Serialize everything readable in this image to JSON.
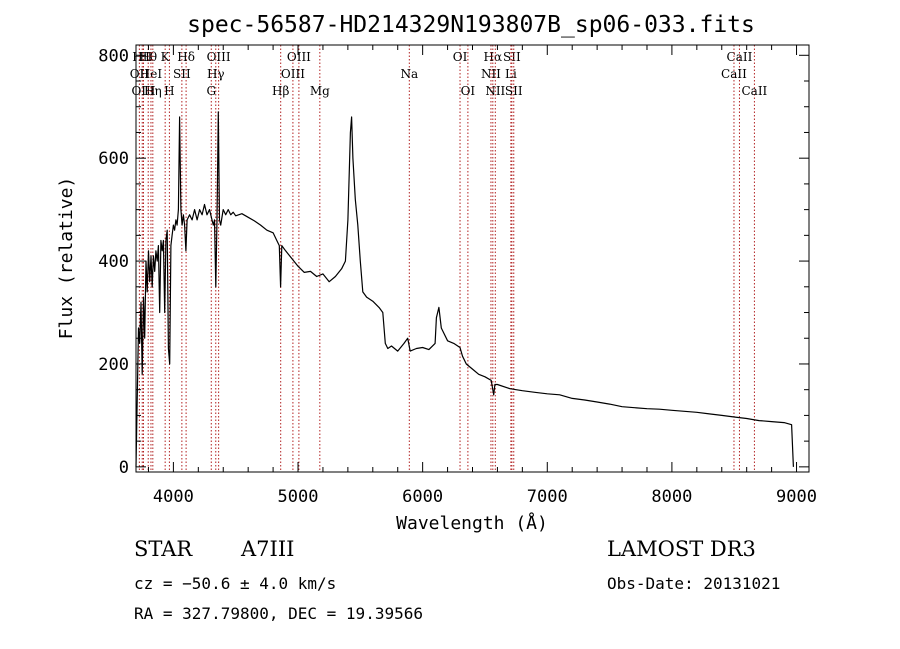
{
  "chart_data": {
    "type": "line",
    "title": "spec-56587-HD214329N193807B_sp06-033.fits",
    "xlabel": "Wavelength (Å)",
    "ylabel": "Flux (relative)",
    "xlim": [
      3700,
      9100
    ],
    "ylim": [
      -10,
      820
    ],
    "xticks": [
      4000,
      5000,
      6000,
      7000,
      8000,
      9000
    ],
    "yticks": [
      0,
      200,
      400,
      600,
      800
    ],
    "line_color": "#000000",
    "marker_color": "#b22222",
    "spectrum": [
      [
        3700,
        0
      ],
      [
        3710,
        130
      ],
      [
        3720,
        270
      ],
      [
        3730,
        240
      ],
      [
        3740,
        320
      ],
      [
        3750,
        180
      ],
      [
        3760,
        330
      ],
      [
        3770,
        250
      ],
      [
        3780,
        400
      ],
      [
        3790,
        340
      ],
      [
        3800,
        420
      ],
      [
        3810,
        360
      ],
      [
        3820,
        410
      ],
      [
        3830,
        350
      ],
      [
        3840,
        410
      ],
      [
        3850,
        380
      ],
      [
        3860,
        420
      ],
      [
        3870,
        400
      ],
      [
        3880,
        430
      ],
      [
        3890,
        300
      ],
      [
        3900,
        440
      ],
      [
        3910,
        420
      ],
      [
        3920,
        440
      ],
      [
        3930,
        300
      ],
      [
        3940,
        440
      ],
      [
        3950,
        460
      ],
      [
        3960,
        230
      ],
      [
        3970,
        200
      ],
      [
        3980,
        430
      ],
      [
        3990,
        450
      ],
      [
        4000,
        470
      ],
      [
        4010,
        460
      ],
      [
        4020,
        480
      ],
      [
        4030,
        470
      ],
      [
        4040,
        500
      ],
      [
        4050,
        680
      ],
      [
        4060,
        500
      ],
      [
        4070,
        470
      ],
      [
        4080,
        490
      ],
      [
        4090,
        470
      ],
      [
        4100,
        420
      ],
      [
        4110,
        480
      ],
      [
        4130,
        490
      ],
      [
        4150,
        480
      ],
      [
        4170,
        500
      ],
      [
        4190,
        480
      ],
      [
        4210,
        500
      ],
      [
        4230,
        490
      ],
      [
        4250,
        510
      ],
      [
        4270,
        490
      ],
      [
        4290,
        500
      ],
      [
        4310,
        480
      ],
      [
        4320,
        470
      ],
      [
        4330,
        480
      ],
      [
        4340,
        350
      ],
      [
        4350,
        480
      ],
      [
        4360,
        690
      ],
      [
        4370,
        480
      ],
      [
        4380,
        470
      ],
      [
        4400,
        500
      ],
      [
        4420,
        490
      ],
      [
        4440,
        500
      ],
      [
        4460,
        490
      ],
      [
        4480,
        495
      ],
      [
        4500,
        488
      ],
      [
        4550,
        492
      ],
      [
        4600,
        485
      ],
      [
        4650,
        478
      ],
      [
        4700,
        470
      ],
      [
        4750,
        460
      ],
      [
        4800,
        455
      ],
      [
        4830,
        440
      ],
      [
        4850,
        430
      ],
      [
        4860,
        350
      ],
      [
        4870,
        430
      ],
      [
        4900,
        420
      ],
      [
        4950,
        405
      ],
      [
        5000,
        390
      ],
      [
        5050,
        378
      ],
      [
        5100,
        380
      ],
      [
        5150,
        370
      ],
      [
        5200,
        375
      ],
      [
        5250,
        360
      ],
      [
        5300,
        370
      ],
      [
        5350,
        385
      ],
      [
        5380,
        400
      ],
      [
        5400,
        480
      ],
      [
        5420,
        650
      ],
      [
        5430,
        680
      ],
      [
        5440,
        600
      ],
      [
        5460,
        520
      ],
      [
        5480,
        470
      ],
      [
        5500,
        400
      ],
      [
        5520,
        340
      ],
      [
        5550,
        330
      ],
      [
        5600,
        322
      ],
      [
        5650,
        310
      ],
      [
        5680,
        300
      ],
      [
        5700,
        240
      ],
      [
        5720,
        230
      ],
      [
        5750,
        235
      ],
      [
        5800,
        225
      ],
      [
        5850,
        240
      ],
      [
        5880,
        250
      ],
      [
        5900,
        225
      ],
      [
        5950,
        230
      ],
      [
        6000,
        232
      ],
      [
        6050,
        228
      ],
      [
        6100,
        240
      ],
      [
        6110,
        290
      ],
      [
        6130,
        310
      ],
      [
        6150,
        270
      ],
      [
        6200,
        245
      ],
      [
        6250,
        240
      ],
      [
        6300,
        232
      ],
      [
        6320,
        215
      ],
      [
        6350,
        200
      ],
      [
        6400,
        190
      ],
      [
        6450,
        180
      ],
      [
        6500,
        175
      ],
      [
        6550,
        168
      ],
      [
        6570,
        140
      ],
      [
        6580,
        160
      ],
      [
        6600,
        160
      ],
      [
        6700,
        152
      ],
      [
        6800,
        148
      ],
      [
        6900,
        145
      ],
      [
        7000,
        142
      ],
      [
        7100,
        140
      ],
      [
        7200,
        133
      ],
      [
        7300,
        130
      ],
      [
        7400,
        126
      ],
      [
        7500,
        122
      ],
      [
        7600,
        117
      ],
      [
        7700,
        115
      ],
      [
        7800,
        113
      ],
      [
        7900,
        112
      ],
      [
        8000,
        110
      ],
      [
        8100,
        108
      ],
      [
        8200,
        106
      ],
      [
        8300,
        103
      ],
      [
        8400,
        100
      ],
      [
        8500,
        97
      ],
      [
        8600,
        94
      ],
      [
        8700,
        90
      ],
      [
        8800,
        88
      ],
      [
        8900,
        86
      ],
      [
        8960,
        82
      ],
      [
        8975,
        0
      ]
    ],
    "line_markers": [
      {
        "label": "HII",
        "wavelength": 3750,
        "row": 1
      },
      {
        "label": "OII",
        "wavelength": 3727,
        "row": 2
      },
      {
        "label": "OIII",
        "wavelength": 3760,
        "row": 3
      },
      {
        "label": "Hθ",
        "wavelength": 3798,
        "row": 1
      },
      {
        "label": "HeI",
        "wavelength": 3820,
        "row": 2
      },
      {
        "label": "Hη",
        "wavelength": 3835,
        "row": 3
      },
      {
        "label": "K",
        "wavelength": 3934,
        "row": 1
      },
      {
        "label": "H",
        "wavelength": 3968,
        "row": 3
      },
      {
        "label": "SII",
        "wavelength": 4068,
        "row": 2
      },
      {
        "label": "Hδ",
        "wavelength": 4102,
        "row": 1
      },
      {
        "label": "OIII",
        "wavelength": 4363,
        "row": 1
      },
      {
        "label": "Hγ",
        "wavelength": 4340,
        "row": 2
      },
      {
        "label": "G",
        "wavelength": 4304,
        "row": 3
      },
      {
        "label": "Hβ",
        "wavelength": 4861,
        "row": 3
      },
      {
        "label": "OIII",
        "wavelength": 5007,
        "row": 1
      },
      {
        "label": "OIII",
        "wavelength": 4959,
        "row": 2
      },
      {
        "label": "Mg",
        "wavelength": 5175,
        "row": 3
      },
      {
        "label": "Na",
        "wavelength": 5893,
        "row": 2
      },
      {
        "label": "OI",
        "wavelength": 6300,
        "row": 1
      },
      {
        "label": "OI",
        "wavelength": 6363,
        "row": 3
      },
      {
        "label": "Hα",
        "wavelength": 6563,
        "row": 1
      },
      {
        "label": "NII",
        "wavelength": 6548,
        "row": 2
      },
      {
        "label": "NII",
        "wavelength": 6583,
        "row": 3
      },
      {
        "label": "SII",
        "wavelength": 6716,
        "row": 1
      },
      {
        "label": "Li",
        "wavelength": 6708,
        "row": 2
      },
      {
        "label": "SII",
        "wavelength": 6731,
        "row": 3
      },
      {
        "label": "CaII",
        "wavelength": 8542,
        "row": 1
      },
      {
        "label": "CaII",
        "wavelength": 8498,
        "row": 2
      },
      {
        "label": "CaII",
        "wavelength": 8662,
        "row": 3
      }
    ]
  },
  "info": {
    "object_class": "STAR",
    "subclass": "A7III",
    "survey": "LAMOST DR3",
    "cz": "cz = −50.6 ± 4.0 km/s",
    "obs_date": "Obs-Date: 20131021",
    "coords": "RA = 327.79800, DEC =  19.39566"
  }
}
